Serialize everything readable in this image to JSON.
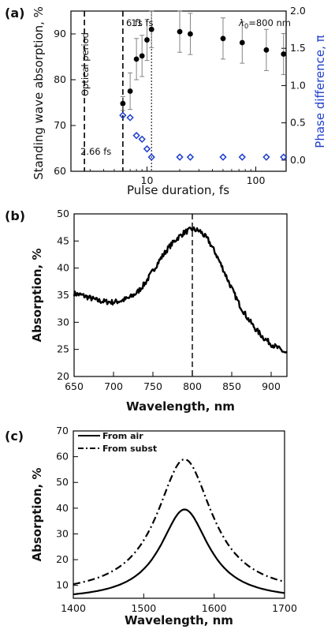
{
  "chart_data": [
    {
      "id": "a",
      "panel_label": "(a)",
      "type": "scatter",
      "xlabel": "Pulse duration, fs",
      "ylabel": "Standing wave absorption, %",
      "y2label": "Phase difference, π",
      "xscale": "log",
      "xlim": [
        2,
        190
      ],
      "ylim": [
        60,
        95
      ],
      "y2lim": [
        -0.15,
        2.0
      ],
      "xticks": [
        10,
        100
      ],
      "xtick_labels": [
        "10",
        "100"
      ],
      "yticks": [
        60,
        70,
        80,
        90
      ],
      "ytick_labels": [
        "60",
        "70",
        "80",
        "90"
      ],
      "y2ticks": [
        0.0,
        0.5,
        1.0,
        1.5,
        2.0
      ],
      "y2tick_labels": [
        "0.0",
        "0.5",
        "1.0",
        "1.5",
        "2.0"
      ],
      "annotations": {
        "lambda_label": "λ",
        "lambda_sub": "0",
        "lambda_value": "=800 nm",
        "optical_period": "Optical period",
        "t266": "2.66 fs",
        "t6": "6 fs",
        "t11": "11 fs"
      },
      "vlines": [
        {
          "x": 2.66,
          "style": "dashed"
        },
        {
          "x": 6,
          "style": "dashed"
        },
        {
          "x": 11,
          "style": "dotted"
        }
      ],
      "series": [
        {
          "axis": "left",
          "marker": "filled-circle",
          "color": "#000000",
          "x": [
            6,
            7,
            8,
            9,
            10,
            11,
            20,
            25,
            50,
            75,
            125,
            180
          ],
          "y": [
            74.8,
            77.5,
            84.5,
            85.2,
            88.7,
            91.0,
            90.5,
            90.0,
            89.0,
            88.1,
            86.5,
            85.6
          ],
          "err": [
            1.5,
            4.0,
            4.5,
            4.5,
            4.5,
            4.0,
            4.5,
            4.5,
            4.5,
            4.5,
            4.5,
            4.5
          ]
        },
        {
          "axis": "right",
          "marker": "open-diamond",
          "color": "#1f3fcf",
          "x": [
            6,
            7,
            8,
            9,
            10,
            11,
            20,
            25,
            50,
            75,
            125,
            180
          ],
          "y": [
            0.6,
            0.57,
            0.33,
            0.28,
            0.15,
            0.04,
            0.04,
            0.04,
            0.04,
            0.04,
            0.04,
            0.04
          ]
        }
      ]
    },
    {
      "id": "b",
      "panel_label": "(b)",
      "type": "line",
      "xlabel": "Wavelength, nm",
      "ylabel": "Absorption, %",
      "xlim": [
        650,
        920
      ],
      "ylim": [
        20,
        50
      ],
      "xticks": [
        650,
        700,
        750,
        800,
        850,
        900
      ],
      "xtick_labels": [
        "650",
        "700",
        "750",
        "800",
        "850",
        "900"
      ],
      "yticks": [
        20,
        25,
        30,
        35,
        40,
        45,
        50
      ],
      "ytick_labels": [
        "20",
        "25",
        "30",
        "35",
        "40",
        "45",
        "50"
      ],
      "vline": {
        "x": 800,
        "style": "dashed"
      },
      "noise_amplitude": 0.5,
      "series": [
        {
          "color": "#000000",
          "x": [
            650,
            660,
            670,
            680,
            690,
            700,
            710,
            720,
            730,
            740,
            750,
            760,
            770,
            780,
            790,
            800,
            810,
            820,
            830,
            840,
            850,
            860,
            870,
            880,
            890,
            900,
            910,
            920
          ],
          "y": [
            35.3,
            35.0,
            34.5,
            34.0,
            33.8,
            33.7,
            34.0,
            34.5,
            35.5,
            37.2,
            39.5,
            41.8,
            43.8,
            45.4,
            46.6,
            47.2,
            46.8,
            45.2,
            42.6,
            39.5,
            36.2,
            33.2,
            30.8,
            28.8,
            27.2,
            26.0,
            25.1,
            24.2
          ]
        }
      ]
    },
    {
      "id": "c",
      "panel_label": "(c)",
      "type": "line",
      "xlabel": "Wavelength, nm",
      "ylabel": "Absorption, %",
      "xlim": [
        1400,
        1700
      ],
      "ylim": [
        5,
        70
      ],
      "xticks": [
        1400,
        1500,
        1600,
        1700
      ],
      "xtick_labels": [
        "1400",
        "1500",
        "1600",
        "1700"
      ],
      "yticks": [
        10,
        20,
        30,
        40,
        50,
        60,
        70
      ],
      "ytick_labels": [
        "10",
        "20",
        "30",
        "40",
        "50",
        "60",
        "70"
      ],
      "legend_position": "top-left",
      "series": [
        {
          "name": "From air",
          "style": "solid",
          "color": "#000000",
          "center": 1558,
          "peak": 39.5,
          "baseline": 4.2,
          "width": 42
        },
        {
          "name": "From subst",
          "style": "dash-dot",
          "color": "#000000",
          "center": 1558,
          "peak": 59.0,
          "baseline": 6.0,
          "width": 48
        }
      ]
    }
  ]
}
